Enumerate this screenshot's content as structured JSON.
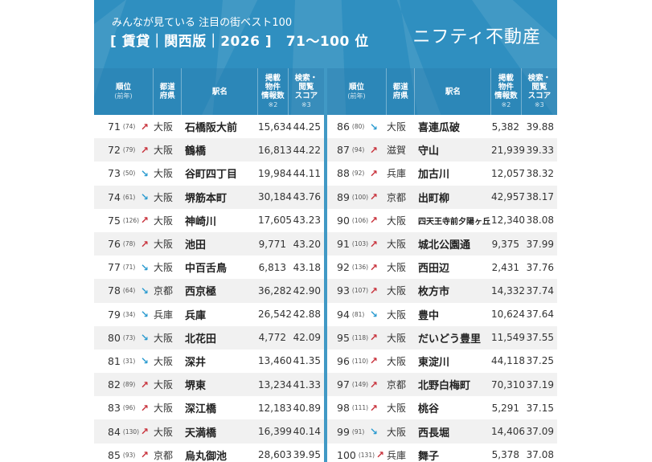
{
  "header": {
    "subtitle": "みんなが見ている 注目の街ベスト100",
    "title": "[ 賃貸｜関西版｜2026 ]　71〜100 位",
    "logo": "ニフティ不動産"
  },
  "colors": {
    "background": "#2f8fc0",
    "up_arrow": "#c8323c",
    "down_arrow": "#2b9bd0"
  },
  "columns": {
    "rank": "順位",
    "rank_sub": "(前年)",
    "pref1": "都道",
    "pref2": "府県",
    "station": "駅名",
    "count1": "掲載",
    "count2": "物件",
    "count3": "情報数",
    "count_note": "※2",
    "score1": "検索・",
    "score2": "閲覧",
    "score3": "スコア",
    "score_note": "※3"
  },
  "rows": [
    {
      "rank": "71",
      "prev": "(74)",
      "trend": "up",
      "pref": "大阪",
      "station": "石橋阪大前",
      "count": "15,634",
      "score": "44.25"
    },
    {
      "rank": "72",
      "prev": "(79)",
      "trend": "up",
      "pref": "大阪",
      "station": "鶴橋",
      "count": "16,813",
      "score": "44.22"
    },
    {
      "rank": "73",
      "prev": "(50)",
      "trend": "down",
      "pref": "大阪",
      "station": "谷町四丁目",
      "count": "19,984",
      "score": "44.11"
    },
    {
      "rank": "74",
      "prev": "(61)",
      "trend": "down",
      "pref": "大阪",
      "station": "堺筋本町",
      "count": "30,184",
      "score": "43.76"
    },
    {
      "rank": "75",
      "prev": "(126)",
      "trend": "up",
      "pref": "大阪",
      "station": "神崎川",
      "count": "17,605",
      "score": "43.23"
    },
    {
      "rank": "76",
      "prev": "(78)",
      "trend": "up",
      "pref": "大阪",
      "station": "池田",
      "count": "9,771",
      "score": "43.20"
    },
    {
      "rank": "77",
      "prev": "(71)",
      "trend": "down",
      "pref": "大阪",
      "station": "中百舌鳥",
      "count": "6,813",
      "score": "43.18"
    },
    {
      "rank": "78",
      "prev": "(64)",
      "trend": "down",
      "pref": "京都",
      "station": "西京極",
      "count": "36,282",
      "score": "42.90"
    },
    {
      "rank": "79",
      "prev": "(34)",
      "trend": "down",
      "pref": "兵庫",
      "station": "兵庫",
      "count": "26,542",
      "score": "42.88"
    },
    {
      "rank": "80",
      "prev": "(73)",
      "trend": "down",
      "pref": "大阪",
      "station": "北花田",
      "count": "4,772",
      "score": "42.09"
    },
    {
      "rank": "81",
      "prev": "(31)",
      "trend": "down",
      "pref": "大阪",
      "station": "深井",
      "count": "13,460",
      "score": "41.35"
    },
    {
      "rank": "82",
      "prev": "(89)",
      "trend": "up",
      "pref": "大阪",
      "station": "堺東",
      "count": "13,234",
      "score": "41.33"
    },
    {
      "rank": "83",
      "prev": "(96)",
      "trend": "up",
      "pref": "大阪",
      "station": "深江橋",
      "count": "12,183",
      "score": "40.89"
    },
    {
      "rank": "84",
      "prev": "(130)",
      "trend": "up",
      "pref": "大阪",
      "station": "天満橋",
      "count": "16,399",
      "score": "40.14"
    },
    {
      "rank": "85",
      "prev": "(93)",
      "trend": "up",
      "pref": "京都",
      "station": "烏丸御池",
      "count": "28,603",
      "score": "39.95"
    },
    {
      "rank": "86",
      "prev": "(80)",
      "trend": "down",
      "pref": "大阪",
      "station": "喜連瓜破",
      "count": "5,382",
      "score": "39.88"
    },
    {
      "rank": "87",
      "prev": "(94)",
      "trend": "up",
      "pref": "滋賀",
      "station": "守山",
      "count": "21,939",
      "score": "39.33"
    },
    {
      "rank": "88",
      "prev": "(92)",
      "trend": "up",
      "pref": "兵庫",
      "station": "加古川",
      "count": "12,057",
      "score": "38.32"
    },
    {
      "rank": "89",
      "prev": "(100)",
      "trend": "up",
      "pref": "京都",
      "station": "出町柳",
      "count": "42,957",
      "score": "38.17"
    },
    {
      "rank": "90",
      "prev": "(106)",
      "trend": "up",
      "pref": "大阪",
      "station": "四天王寺前夕陽ヶ丘",
      "count": "12,340",
      "score": "38.08"
    },
    {
      "rank": "91",
      "prev": "(103)",
      "trend": "up",
      "pref": "大阪",
      "station": "城北公園通",
      "count": "9,375",
      "score": "37.99"
    },
    {
      "rank": "92",
      "prev": "(136)",
      "trend": "up",
      "pref": "大阪",
      "station": "西田辺",
      "count": "2,431",
      "score": "37.76"
    },
    {
      "rank": "93",
      "prev": "(107)",
      "trend": "up",
      "pref": "大阪",
      "station": "枚方市",
      "count": "14,332",
      "score": "37.74"
    },
    {
      "rank": "94",
      "prev": "(81)",
      "trend": "down",
      "pref": "大阪",
      "station": "豊中",
      "count": "10,624",
      "score": "37.64"
    },
    {
      "rank": "95",
      "prev": "(118)",
      "trend": "up",
      "pref": "大阪",
      "station": "だいどう豊里",
      "count": "11,549",
      "score": "37.55"
    },
    {
      "rank": "96",
      "prev": "(110)",
      "trend": "up",
      "pref": "大阪",
      "station": "東淀川",
      "count": "44,118",
      "score": "37.25"
    },
    {
      "rank": "97",
      "prev": "(149)",
      "trend": "up",
      "pref": "京都",
      "station": "北野白梅町",
      "count": "70,310",
      "score": "37.19"
    },
    {
      "rank": "98",
      "prev": "(111)",
      "trend": "up",
      "pref": "大阪",
      "station": "桃谷",
      "count": "5,291",
      "score": "37.15"
    },
    {
      "rank": "99",
      "prev": "(91)",
      "trend": "down",
      "pref": "大阪",
      "station": "西長堀",
      "count": "14,406",
      "score": "37.09"
    },
    {
      "rank": "100",
      "prev": "(131)",
      "trend": "up",
      "pref": "兵庫",
      "station": "舞子",
      "count": "5,378",
      "score": "37.08"
    }
  ]
}
